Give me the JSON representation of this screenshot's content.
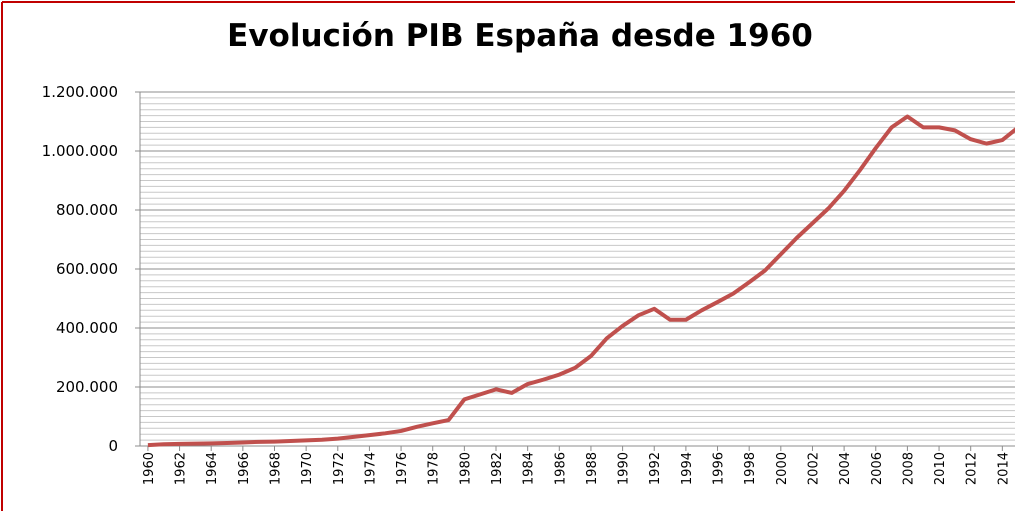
{
  "chart_data": {
    "type": "line",
    "title": "Evolución PIB España desde 1960",
    "x": [
      1960,
      1961,
      1962,
      1963,
      1964,
      1965,
      1966,
      1967,
      1968,
      1969,
      1970,
      1971,
      1972,
      1973,
      1974,
      1975,
      1976,
      1977,
      1978,
      1979,
      1980,
      1981,
      1982,
      1983,
      1984,
      1985,
      1986,
      1987,
      1988,
      1989,
      1990,
      1991,
      1992,
      1993,
      1994,
      1995,
      1996,
      1997,
      1998,
      1999,
      2000,
      2001,
      2002,
      2003,
      2004,
      2005,
      2006,
      2007,
      2008,
      2009,
      2010,
      2011,
      2012,
      2013,
      2014,
      2015
    ],
    "series": [
      {
        "color": "#c0504d",
        "values": [
          3000,
          6000,
          7000,
          8000,
          9000,
          10000,
          12000,
          14000,
          15000,
          17000,
          19000,
          21000,
          25000,
          31000,
          37000,
          43000,
          51000,
          65000,
          77000,
          88000,
          158000,
          175000,
          192000,
          180000,
          210000,
          225000,
          242000,
          265000,
          305000,
          365000,
          407000,
          443000,
          465000,
          428000,
          428000,
          460000,
          488000,
          517000,
          555000,
          595000,
          650000,
          705000,
          755000,
          805000,
          865000,
          935000,
          1010000,
          1080000,
          1117000,
          1080000,
          1080000,
          1070000,
          1040000,
          1025000,
          1037000,
          1080000
        ]
      }
    ],
    "xlim": [
      1959.5,
      2014.8
    ],
    "xticks": [
      1960,
      1962,
      1964,
      1966,
      1968,
      1970,
      1972,
      1974,
      1976,
      1978,
      1980,
      1982,
      1984,
      1986,
      1988,
      1990,
      1992,
      1994,
      1996,
      1998,
      2000,
      2002,
      2004,
      2006,
      2008,
      2010,
      2012,
      2014
    ],
    "ylim": [
      0,
      1200000
    ],
    "yticks": [
      0,
      {
        "value": 200000,
        "label": "200.000"
      },
      {
        "value": 400000,
        "label": "400.000"
      },
      {
        "value": 600000,
        "label": "600.000"
      },
      {
        "value": 800000,
        "label": "800.000"
      },
      {
        "value": 1000000,
        "label": "1.000.000"
      },
      {
        "value": 1200000,
        "label": "1.200.000"
      }
    ],
    "minor_ytick_step": 20000,
    "grid": true
  }
}
